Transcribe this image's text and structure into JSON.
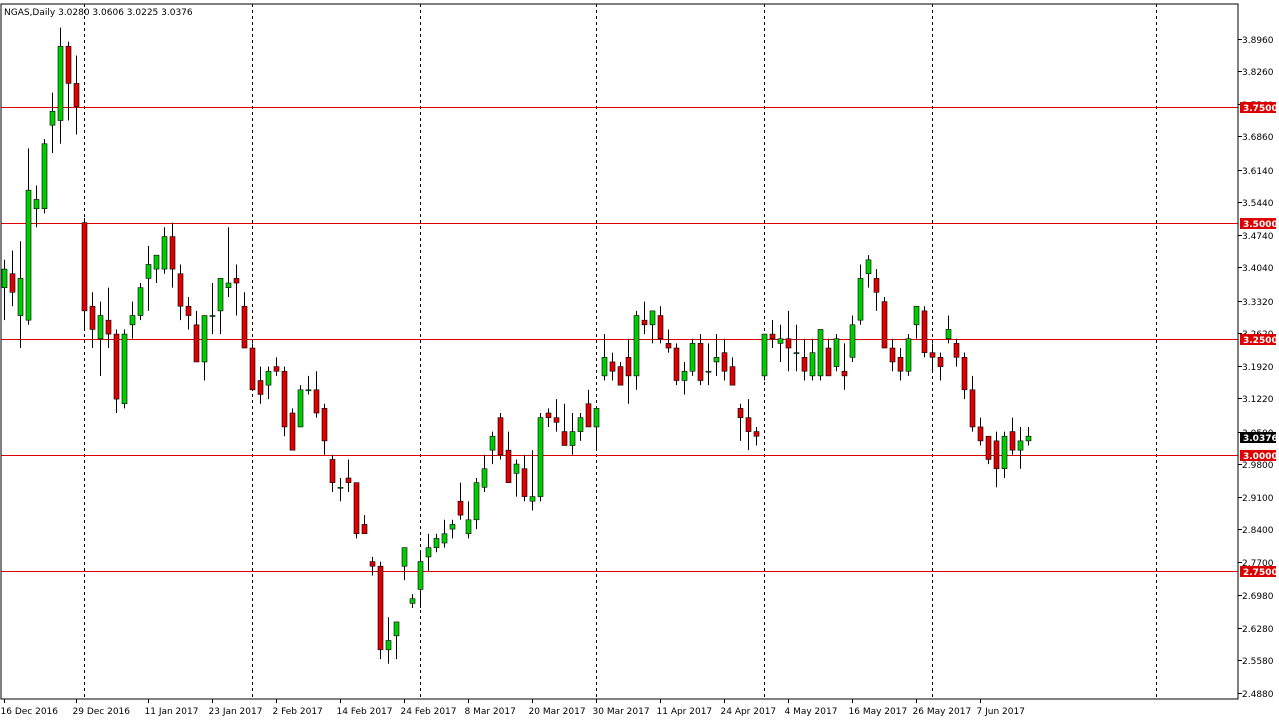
{
  "title": "NGAS,Daily  3.0280 3.0606 3.0225 3.0376",
  "current_price_label": "3.0376",
  "colors": {
    "bull": "#00cc00",
    "bear": "#dd0000",
    "level": "#dd0000",
    "grid": "#000000",
    "current_bg": "#000000"
  },
  "chart_data": {
    "type": "candlestick",
    "title": "NGAS,Daily  3.0280 3.0606 3.0225 3.0376",
    "ylim": [
      2.474,
      3.971
    ],
    "y_ticks": [
      "3.8960",
      "3.8260",
      "3.7560",
      "3.6860",
      "3.6140",
      "3.5440",
      "3.4740",
      "3.4040",
      "3.3320",
      "3.2620",
      "3.1920",
      "3.1220",
      "3.0500",
      "2.9800",
      "2.9100",
      "2.8400",
      "2.7700",
      "2.6980",
      "2.6280",
      "2.5580",
      "2.4880"
    ],
    "y_tick_values": [
      3.896,
      3.826,
      3.756,
      3.686,
      3.614,
      3.544,
      3.474,
      3.404,
      3.332,
      3.262,
      3.192,
      3.122,
      3.05,
      2.98,
      2.91,
      2.84,
      2.77,
      2.698,
      2.628,
      2.558,
      2.488
    ],
    "x_labels": [
      {
        "label": "16 Dec 2016",
        "index": 0
      },
      {
        "label": "29 Dec 2016",
        "index": 9
      },
      {
        "label": "11 Jan 2017",
        "index": 18
      },
      {
        "label": "23 Jan 2017",
        "index": 26
      },
      {
        "label": "2 Feb 2017",
        "index": 34
      },
      {
        "label": "14 Feb 2017",
        "index": 42
      },
      {
        "label": "24 Feb 2017",
        "index": 50
      },
      {
        "label": "8 Mar 2017",
        "index": 58
      },
      {
        "label": "20 Mar 2017",
        "index": 66
      },
      {
        "label": "30 Mar 2017",
        "index": 74
      },
      {
        "label": "11 Apr 2017",
        "index": 82
      },
      {
        "label": "24 Apr 2017",
        "index": 90
      },
      {
        "label": "4 May 2017",
        "index": 98
      },
      {
        "label": "16 May 2017",
        "index": 106
      },
      {
        "label": "26 May 2017",
        "index": 114
      },
      {
        "label": "7 Jun 2017",
        "index": 122
      }
    ],
    "period_separators": [
      10,
      31,
      52,
      74,
      95,
      116,
      144
    ],
    "levels": [
      {
        "value": 3.75,
        "label": "3.7500"
      },
      {
        "value": 3.5,
        "label": "3.5000"
      },
      {
        "value": 3.25,
        "label": "3.2500"
      },
      {
        "value": 3.0,
        "label": "3.0000"
      },
      {
        "value": 2.75,
        "label": "2.7500"
      }
    ],
    "current_price": 3.0376,
    "candles": [
      [
        3.36,
        3.42,
        3.29,
        3.4
      ],
      [
        3.39,
        3.44,
        3.32,
        3.35
      ],
      [
        3.3,
        3.46,
        3.23,
        3.38
      ],
      [
        3.29,
        3.66,
        3.28,
        3.57
      ],
      [
        3.53,
        3.58,
        3.49,
        3.55
      ],
      [
        3.53,
        3.68,
        3.52,
        3.67
      ],
      [
        3.71,
        3.78,
        3.65,
        3.74
      ],
      [
        3.72,
        3.92,
        3.67,
        3.88
      ],
      [
        3.88,
        3.89,
        3.72,
        3.8
      ],
      [
        3.8,
        3.86,
        3.69,
        3.75
      ],
      [
        3.5,
        3.51,
        3.27,
        3.31
      ],
      [
        3.32,
        3.35,
        3.23,
        3.27
      ],
      [
        3.25,
        3.33,
        3.17,
        3.3
      ],
      [
        3.29,
        3.36,
        3.23,
        3.26
      ],
      [
        3.26,
        3.27,
        3.09,
        3.12
      ],
      [
        3.11,
        3.27,
        3.1,
        3.26
      ],
      [
        3.28,
        3.33,
        3.25,
        3.3
      ],
      [
        3.3,
        3.37,
        3.29,
        3.36
      ],
      [
        3.38,
        3.45,
        3.31,
        3.41
      ],
      [
        3.4,
        3.42,
        3.37,
        3.43
      ],
      [
        3.4,
        3.49,
        3.39,
        3.47
      ],
      [
        3.47,
        3.5,
        3.36,
        3.4
      ],
      [
        3.39,
        3.41,
        3.29,
        3.32
      ],
      [
        3.32,
        3.34,
        3.27,
        3.3
      ],
      [
        3.28,
        3.31,
        3.2,
        3.2
      ],
      [
        3.2,
        3.3,
        3.16,
        3.3
      ],
      [
        3.3,
        3.37,
        3.26,
        3.3
      ],
      [
        3.31,
        3.38,
        3.26,
        3.38
      ],
      [
        3.36,
        3.49,
        3.34,
        3.37
      ],
      [
        3.38,
        3.41,
        3.3,
        3.37
      ],
      [
        3.32,
        3.35,
        3.23,
        3.23
      ],
      [
        3.23,
        3.24,
        3.14,
        3.14
      ],
      [
        3.16,
        3.19,
        3.11,
        3.13
      ],
      [
        3.15,
        3.19,
        3.12,
        3.18
      ],
      [
        3.19,
        3.21,
        3.17,
        3.18
      ],
      [
        3.18,
        3.19,
        3.04,
        3.06
      ],
      [
        3.09,
        3.1,
        3.01,
        3.01
      ],
      [
        3.06,
        3.15,
        3.06,
        3.14
      ],
      [
        3.14,
        3.17,
        3.13,
        3.14
      ],
      [
        3.14,
        3.18,
        3.08,
        3.09
      ],
      [
        3.1,
        3.11,
        3.0,
        3.03
      ],
      [
        2.99,
        3.0,
        2.92,
        2.94
      ],
      [
        2.93,
        2.95,
        2.9,
        2.93
      ],
      [
        2.95,
        2.99,
        2.92,
        2.94
      ],
      [
        2.94,
        2.94,
        2.82,
        2.83
      ],
      [
        2.85,
        2.87,
        2.83,
        2.83
      ],
      [
        2.77,
        2.78,
        2.74,
        2.76
      ],
      [
        2.76,
        2.77,
        2.56,
        2.58
      ],
      [
        2.58,
        2.65,
        2.55,
        2.6
      ],
      [
        2.61,
        2.64,
        2.56,
        2.64
      ],
      [
        2.76,
        2.8,
        2.73,
        2.8
      ],
      [
        2.68,
        2.7,
        2.67,
        2.69
      ],
      [
        2.71,
        2.79,
        2.67,
        2.77
      ],
      [
        2.78,
        2.83,
        2.75,
        2.8
      ],
      [
        2.8,
        2.83,
        2.79,
        2.82
      ],
      [
        2.81,
        2.86,
        2.8,
        2.83
      ],
      [
        2.84,
        2.86,
        2.82,
        2.85
      ],
      [
        2.9,
        2.94,
        2.86,
        2.87
      ],
      [
        2.83,
        2.9,
        2.82,
        2.86
      ],
      [
        2.86,
        2.95,
        2.84,
        2.94
      ],
      [
        2.93,
        3.0,
        2.92,
        2.97
      ],
      [
        3.01,
        3.05,
        2.98,
        3.04
      ],
      [
        3.08,
        3.09,
        2.99,
        3.0
      ],
      [
        3.01,
        3.05,
        2.94,
        2.94
      ],
      [
        2.96,
        2.99,
        2.91,
        2.98
      ],
      [
        2.97,
        3.0,
        2.9,
        2.91
      ],
      [
        2.9,
        3.01,
        2.88,
        2.91
      ],
      [
        2.91,
        3.09,
        2.9,
        3.08
      ],
      [
        3.09,
        3.1,
        3.06,
        3.08
      ],
      [
        3.08,
        3.12,
        3.05,
        3.07
      ],
      [
        3.05,
        3.11,
        3.02,
        3.02
      ],
      [
        3.02,
        3.09,
        3.0,
        3.05
      ],
      [
        3.05,
        3.09,
        3.03,
        3.08
      ],
      [
        3.11,
        3.14,
        3.06,
        3.06
      ],
      [
        3.06,
        3.09,
        3.01,
        3.1
      ],
      [
        3.17,
        3.26,
        3.16,
        3.21
      ],
      [
        3.2,
        3.22,
        3.16,
        3.18
      ],
      [
        3.19,
        3.2,
        3.15,
        3.15
      ],
      [
        3.21,
        3.25,
        3.11,
        3.17
      ],
      [
        3.17,
        3.31,
        3.14,
        3.3
      ],
      [
        3.29,
        3.33,
        3.26,
        3.28
      ],
      [
        3.28,
        3.31,
        3.24,
        3.31
      ],
      [
        3.3,
        3.32,
        3.24,
        3.25
      ],
      [
        3.24,
        3.27,
        3.22,
        3.23
      ],
      [
        3.23,
        3.24,
        3.15,
        3.16
      ],
      [
        3.16,
        3.2,
        3.13,
        3.18
      ],
      [
        3.18,
        3.25,
        3.17,
        3.24
      ],
      [
        3.24,
        3.26,
        3.15,
        3.16
      ],
      [
        3.18,
        3.24,
        3.15,
        3.18
      ],
      [
        3.2,
        3.26,
        3.17,
        3.21
      ],
      [
        3.22,
        3.25,
        3.16,
        3.18
      ],
      [
        3.19,
        3.21,
        3.15,
        3.15
      ],
      [
        3.1,
        3.11,
        3.03,
        3.08
      ],
      [
        3.08,
        3.12,
        3.01,
        3.05
      ],
      [
        3.05,
        3.06,
        3.02,
        3.04
      ],
      [
        3.17,
        3.26,
        3.16,
        3.26
      ],
      [
        3.26,
        3.29,
        3.23,
        3.25
      ],
      [
        3.24,
        3.28,
        3.2,
        3.25
      ],
      [
        3.25,
        3.31,
        3.18,
        3.23
      ],
      [
        3.22,
        3.28,
        3.18,
        3.22
      ],
      [
        3.21,
        3.25,
        3.16,
        3.18
      ],
      [
        3.17,
        3.25,
        3.16,
        3.22
      ],
      [
        3.17,
        3.27,
        3.16,
        3.27
      ],
      [
        3.23,
        3.25,
        3.17,
        3.17
      ],
      [
        3.19,
        3.26,
        3.18,
        3.25
      ],
      [
        3.18,
        3.24,
        3.14,
        3.17
      ],
      [
        3.21,
        3.3,
        3.2,
        3.28
      ],
      [
        3.29,
        3.41,
        3.28,
        3.38
      ],
      [
        3.39,
        3.43,
        3.36,
        3.42
      ],
      [
        3.38,
        3.4,
        3.31,
        3.35
      ],
      [
        3.33,
        3.34,
        3.23,
        3.23
      ],
      [
        3.23,
        3.25,
        3.18,
        3.2
      ],
      [
        3.21,
        3.23,
        3.16,
        3.18
      ],
      [
        3.18,
        3.26,
        3.17,
        3.25
      ],
      [
        3.28,
        3.32,
        3.25,
        3.32
      ],
      [
        3.31,
        3.32,
        3.21,
        3.22
      ],
      [
        3.22,
        3.24,
        3.18,
        3.21
      ],
      [
        3.21,
        3.22,
        3.16,
        3.19
      ],
      [
        3.25,
        3.3,
        3.24,
        3.27
      ],
      [
        3.24,
        3.25,
        3.19,
        3.21
      ],
      [
        3.21,
        3.22,
        3.12,
        3.14
      ],
      [
        3.14,
        3.17,
        3.05,
        3.06
      ],
      [
        3.06,
        3.08,
        3.02,
        3.03
      ],
      [
        3.04,
        3.04,
        2.98,
        2.99
      ],
      [
        3.03,
        3.05,
        2.93,
        2.97
      ],
      [
        2.97,
        3.05,
        2.95,
        3.04
      ],
      [
        3.05,
        3.08,
        3.0,
        3.01
      ],
      [
        3.01,
        3.06,
        2.97,
        3.03
      ],
      [
        3.03,
        3.06,
        3.02,
        3.04
      ]
    ]
  }
}
